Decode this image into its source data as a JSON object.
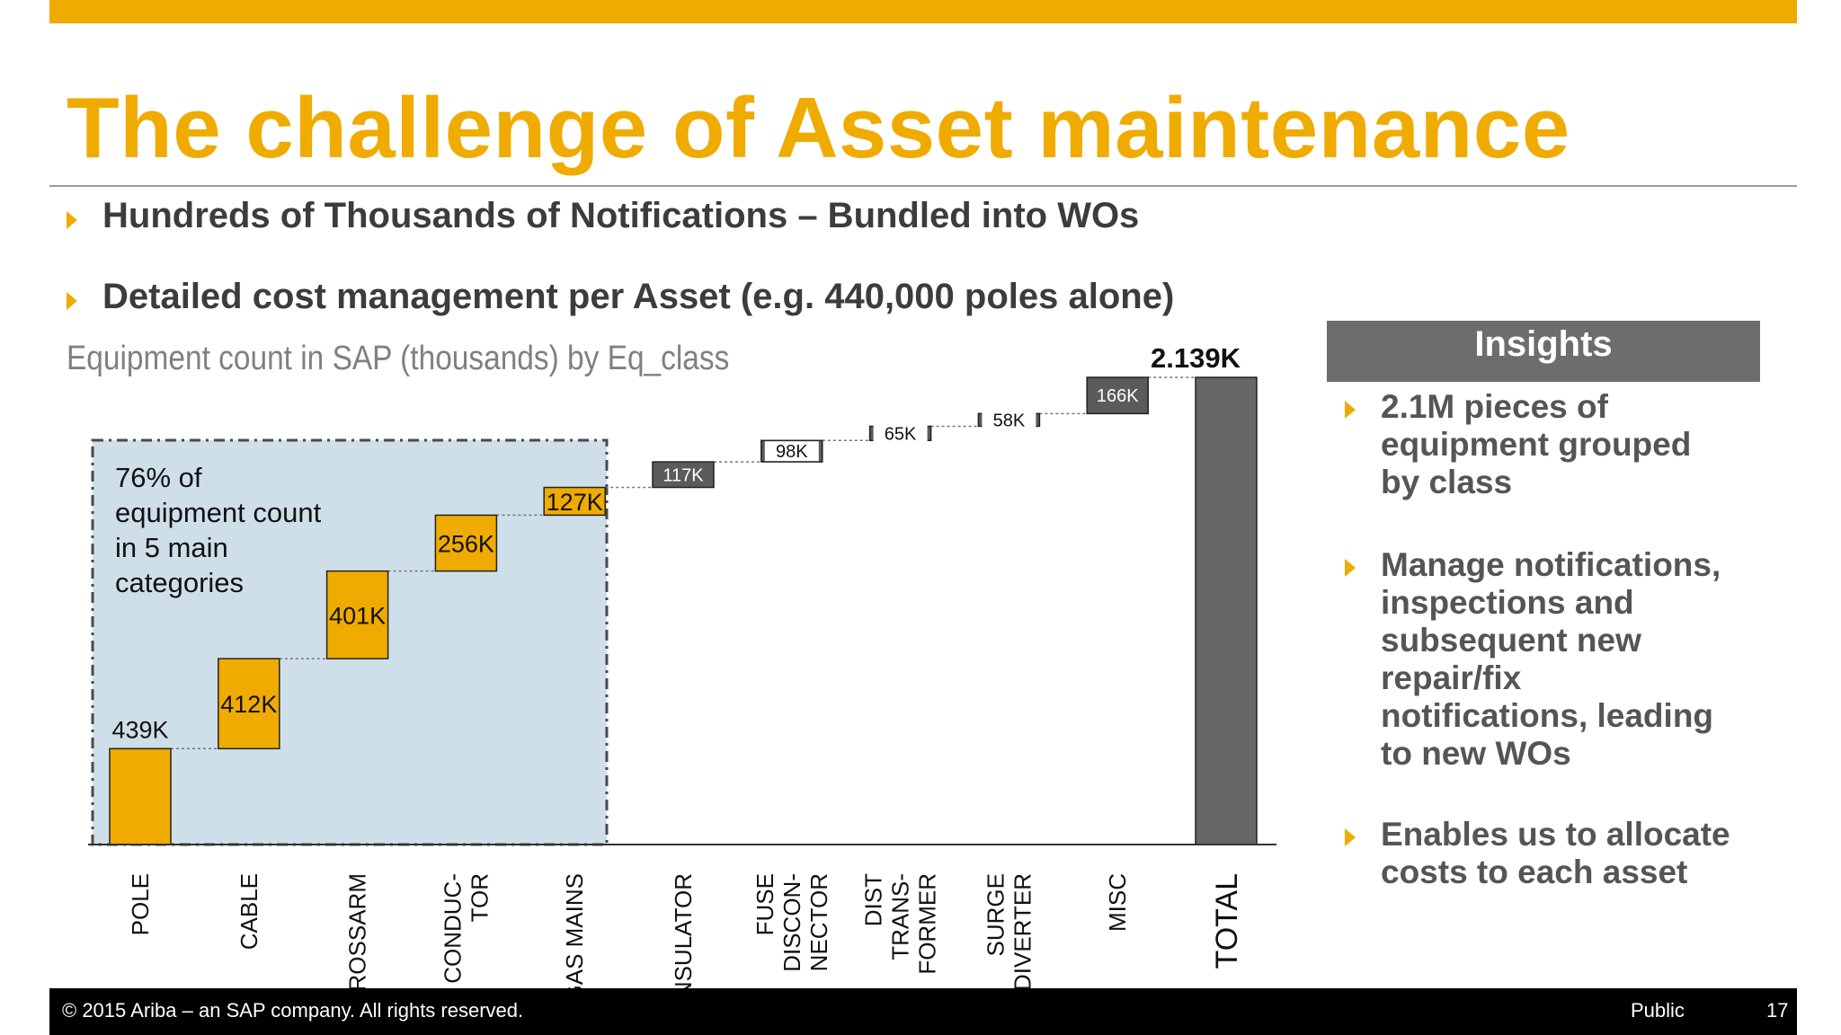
{
  "slide": {
    "title": "The challenge of Asset maintenance",
    "bullets": [
      "Hundreds of Thousands of Notifications – Bundled into WOs",
      "Detailed cost management per Asset (e.g. 440,000 poles alone)"
    ]
  },
  "chart_data": {
    "type": "bar",
    "subtype": "waterfall",
    "title": "Equipment count in SAP (thousands) by Eq_class",
    "categories": [
      "POLE",
      "CABLE",
      "CROSSARM",
      "CONDUC-TOR",
      "GAS MAINS",
      "INSULATOR",
      "FUSE DISCON-NECTOR",
      "DIST TRANS-FORMER",
      "SURGE DIVERTER",
      "MISC",
      "TOTAL"
    ],
    "category_lines": [
      [
        "POLE"
      ],
      [
        "CABLE"
      ],
      [
        "CROSSARM"
      ],
      [
        "CONDUC-",
        "TOR"
      ],
      [
        "GAS MAINS"
      ],
      [
        "INSULATOR"
      ],
      [
        "FUSE",
        "DISCON-",
        "NECTOR"
      ],
      [
        "DIST",
        "TRANS-",
        "FORMER"
      ],
      [
        "SURGE",
        "DIVERTER"
      ],
      [
        "MISC"
      ],
      [
        "TOTAL"
      ]
    ],
    "values": [
      439,
      412,
      401,
      256,
      127,
      117,
      98,
      65,
      58,
      166,
      2139
    ],
    "labels": [
      "439K",
      "412K",
      "401K",
      "256K",
      "127K",
      "117K",
      "98K",
      "65K",
      "58K",
      "166K",
      "2.139K"
    ],
    "total_index": 10,
    "ylim": [
      0,
      2139
    ],
    "highlight": {
      "count": 5,
      "text_lines": [
        "76% of",
        "equipment count",
        "in 5 main",
        "categories"
      ]
    },
    "colors": {
      "highlight_bar": "#f0ab00",
      "other_bar": "#5b5b5b",
      "total_bar": "#666666",
      "highlight_box": "#cfdfe9"
    }
  },
  "insights": {
    "header": "Insights",
    "items": [
      [
        "2.1M pieces of",
        "equipment grouped",
        "by class"
      ],
      [
        "Manage notifications,",
        "inspections and",
        "subsequent new",
        "repair/fix",
        "notifications, leading",
        "to new WOs"
      ],
      [
        "Enables us to allocate",
        "costs to each asset"
      ]
    ]
  },
  "footer": {
    "copyright": "©  2015 Ariba – an SAP company. All rights reserved.",
    "classification": "Public",
    "page": "17"
  }
}
